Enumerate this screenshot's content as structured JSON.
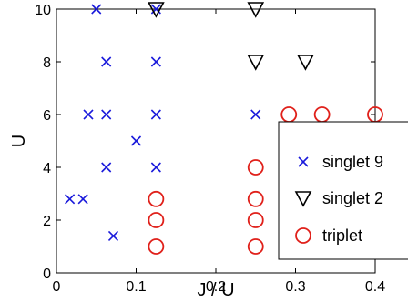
{
  "chart_data": {
    "type": "scatter",
    "title": "",
    "xlabel": "J / U",
    "ylabel": "U",
    "xlim": [
      0,
      0.4
    ],
    "ylim": [
      0,
      10
    ],
    "xticks": [
      "0",
      "0.1",
      "0.2",
      "0.3",
      "0.4"
    ],
    "yticks": [
      "0",
      "2",
      "4",
      "6",
      "8",
      "10"
    ],
    "grid": false,
    "legend_position": "right",
    "series": [
      {
        "name": "singlet 9",
        "marker": "x",
        "color": "#1a1adb",
        "points": [
          [
            0.05,
            10
          ],
          [
            0.0625,
            8
          ],
          [
            0.125,
            8
          ],
          [
            0.125,
            10
          ],
          [
            0.04,
            6
          ],
          [
            0.0625,
            6
          ],
          [
            0.125,
            6
          ],
          [
            0.25,
            6
          ],
          [
            0.1,
            5
          ],
          [
            0.0625,
            4
          ],
          [
            0.125,
            4
          ],
          [
            0.0167,
            2.8
          ],
          [
            0.0333,
            2.8
          ],
          [
            0.0714,
            1.4
          ]
        ]
      },
      {
        "name": "singlet 2",
        "marker": "triangle-down",
        "color": "#000000",
        "points": [
          [
            0.125,
            10
          ],
          [
            0.25,
            10
          ],
          [
            0.25,
            8
          ],
          [
            0.3125,
            8
          ]
        ]
      },
      {
        "name": "triplet",
        "marker": "circle",
        "color": "#e0201a",
        "points": [
          [
            0.125,
            2.8
          ],
          [
            0.125,
            2
          ],
          [
            0.125,
            1
          ],
          [
            0.25,
            4
          ],
          [
            0.25,
            2.8
          ],
          [
            0.25,
            2
          ],
          [
            0.25,
            1
          ],
          [
            0.2917,
            6
          ],
          [
            0.3333,
            6
          ],
          [
            0.4,
            6
          ]
        ]
      }
    ]
  }
}
